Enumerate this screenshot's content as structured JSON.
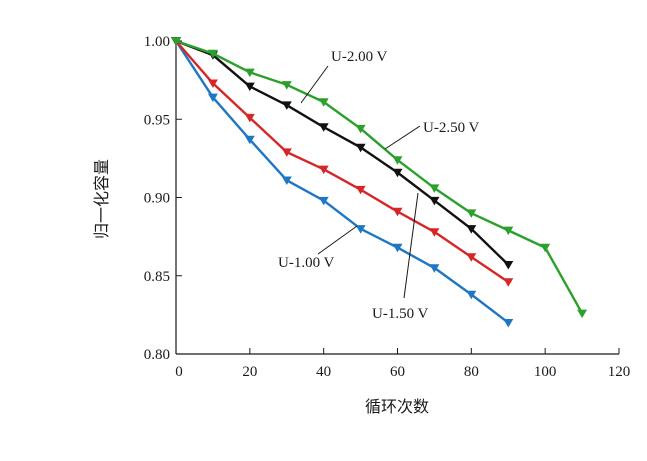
{
  "chart_data": {
    "type": "line",
    "xlabel": "循环次数",
    "ylabel": "归一化容量",
    "xlim": [
      0,
      120
    ],
    "ylim": [
      0.8,
      1.0
    ],
    "xticks": [
      0,
      20,
      40,
      60,
      80,
      100,
      120
    ],
    "yticks": [
      0.8,
      0.85,
      0.9,
      0.95,
      1.0
    ],
    "ytick_labels": [
      "0.80",
      "0.85",
      "0.90",
      "0.95",
      "1.00"
    ],
    "grid": false,
    "marker": "triangle-down",
    "series": [
      {
        "name": "U-1.00 V",
        "color": "#1f77c4",
        "x": [
          0,
          10,
          20,
          30,
          40,
          50,
          60,
          70,
          80,
          90
        ],
        "values": [
          1.0,
          0.964,
          0.937,
          0.911,
          0.898,
          0.88,
          0.868,
          0.855,
          0.838,
          0.82
        ]
      },
      {
        "name": "U-1.50 V",
        "color": "#d62728",
        "x": [
          0,
          10,
          20,
          30,
          40,
          50,
          60,
          70,
          80,
          90
        ],
        "values": [
          1.0,
          0.973,
          0.951,
          0.929,
          0.918,
          0.905,
          0.891,
          0.878,
          0.862,
          0.846
        ]
      },
      {
        "name": "U-2.00 V",
        "color": "#111111",
        "x": [
          0,
          10,
          20,
          30,
          40,
          50,
          60,
          70,
          80,
          90
        ],
        "values": [
          1.0,
          0.991,
          0.971,
          0.959,
          0.945,
          0.932,
          0.916,
          0.898,
          0.88,
          0.857
        ]
      },
      {
        "name": "U-2.50 V",
        "color": "#2ca02c",
        "x": [
          0,
          10,
          20,
          30,
          40,
          50,
          60,
          70,
          80,
          90,
          100,
          110
        ],
        "values": [
          1.0,
          0.992,
          0.98,
          0.972,
          0.961,
          0.944,
          0.924,
          0.906,
          0.89,
          0.879,
          0.868,
          0.826
        ]
      }
    ]
  }
}
